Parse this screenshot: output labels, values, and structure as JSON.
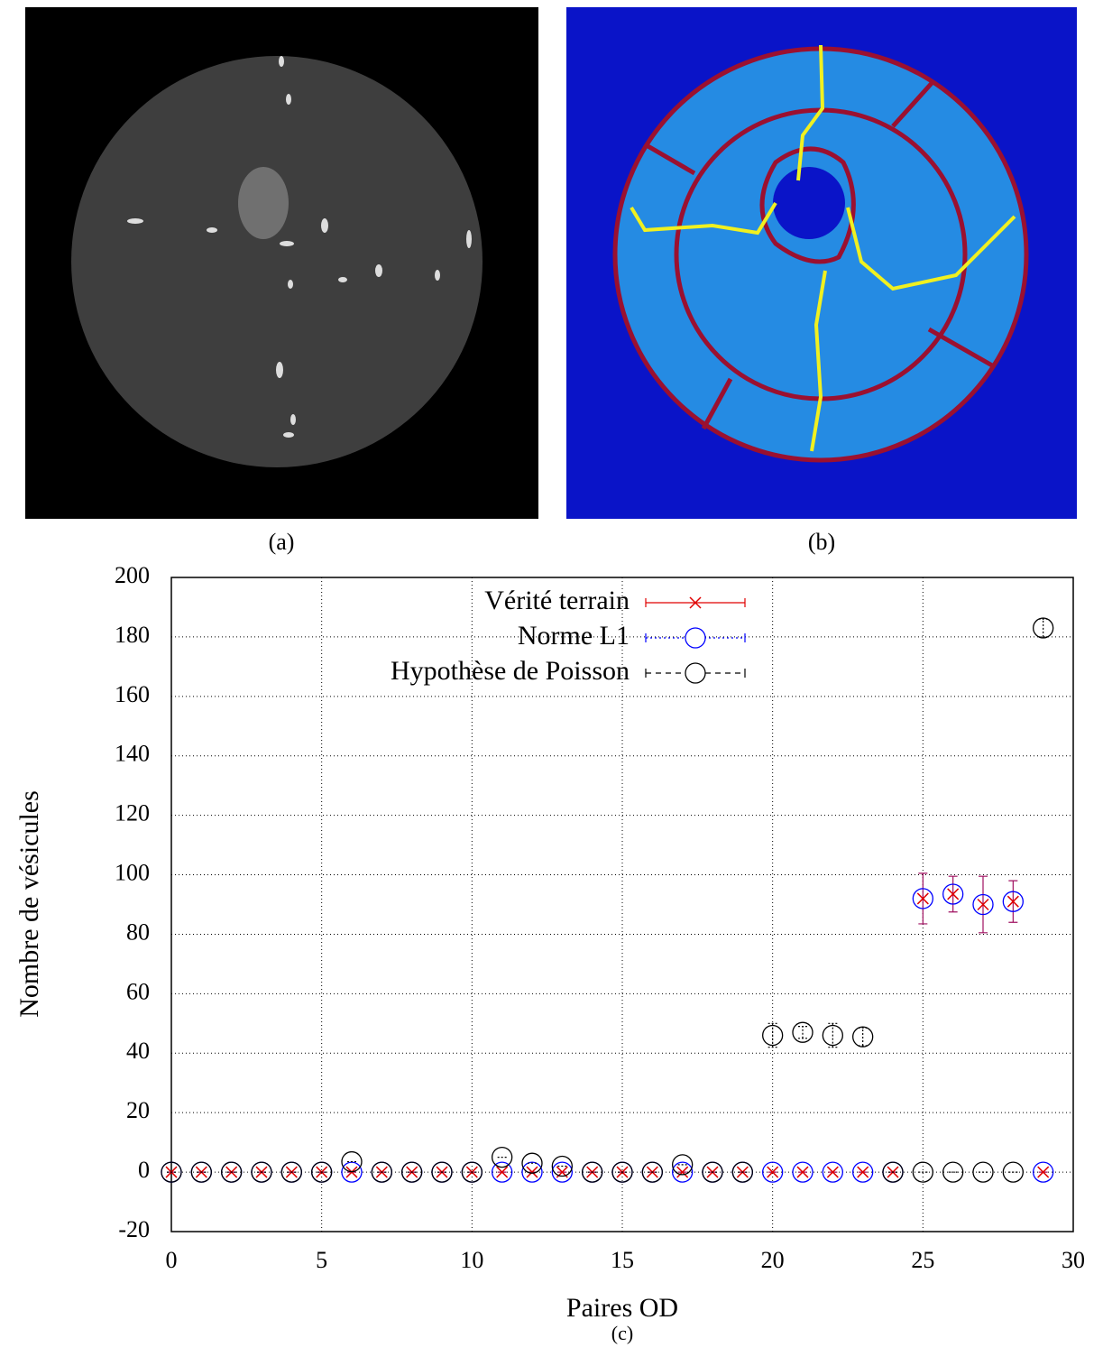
{
  "captions": [
    "(a)",
    "(b)",
    "(c)"
  ],
  "chart_data": {
    "type": "scatter",
    "xlabel": "Paires OD",
    "ylabel": "Nombre de vésicules",
    "xlim": [
      0,
      30
    ],
    "ylim": [
      -20,
      200
    ],
    "xticks": [
      0,
      5,
      10,
      15,
      20,
      25,
      30
    ],
    "yticks": [
      -20,
      0,
      20,
      40,
      60,
      80,
      100,
      120,
      140,
      160,
      180,
      200
    ],
    "grid": true,
    "legend": "top-center",
    "x": [
      0,
      1,
      2,
      3,
      4,
      5,
      6,
      7,
      8,
      9,
      10,
      11,
      12,
      13,
      14,
      15,
      16,
      17,
      18,
      19,
      20,
      21,
      22,
      23,
      24,
      25,
      26,
      27,
      28,
      29
    ],
    "series": [
      {
        "name": "Vérité terrain",
        "color": "#e00000",
        "marker": "x",
        "values": [
          0,
          0,
          0,
          0,
          0,
          0,
          0,
          0,
          0,
          0,
          0,
          0,
          0,
          0,
          0,
          0,
          0,
          0,
          0,
          0,
          0,
          0,
          0,
          0,
          0,
          92,
          93.5,
          90,
          91,
          0
        ],
        "errors": [
          0,
          0,
          0,
          0,
          0,
          0,
          0,
          0,
          0,
          0,
          0,
          0,
          0,
          0,
          0,
          0,
          0,
          0,
          0,
          0,
          0,
          0,
          0,
          0,
          0,
          8.5,
          6,
          9.5,
          7,
          0
        ]
      },
      {
        "name": "Norme L1",
        "color": "#0000ff",
        "marker": "circle",
        "values": [
          0,
          0,
          0,
          0,
          0,
          0,
          0,
          0,
          0,
          0,
          0,
          0,
          0,
          0,
          0,
          0,
          0,
          0,
          0,
          0,
          0,
          0,
          0,
          0,
          0,
          92,
          93.5,
          90,
          91,
          0
        ]
      },
      {
        "name": "Hypothèse de Poisson",
        "color": "#000000",
        "marker": "circle",
        "values": [
          0,
          0,
          0,
          0,
          0,
          0,
          3.5,
          0,
          0,
          0,
          0,
          5,
          3,
          2,
          0,
          0,
          0,
          2.5,
          0,
          0,
          46,
          47,
          46,
          45.5,
          0,
          0,
          0,
          0,
          0,
          183
        ],
        "errors": [
          0,
          0,
          0,
          0,
          0,
          0,
          0,
          0,
          0,
          0,
          0,
          0,
          0,
          0,
          0,
          0,
          0,
          0,
          0,
          0,
          4,
          2,
          4,
          3,
          0,
          0,
          0,
          0,
          0,
          3
        ]
      }
    ]
  }
}
